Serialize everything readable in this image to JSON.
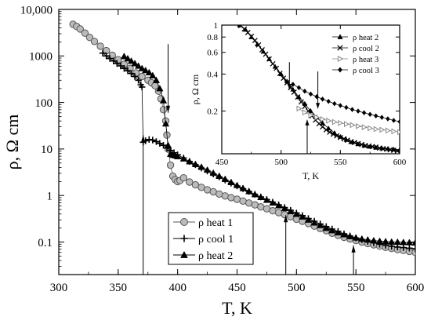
{
  "chart_data": [
    {
      "type": "scatter",
      "title": "",
      "xlabel": "T, K",
      "ylabel": "ρ, Ω cm",
      "xlim": [
        300,
        600
      ],
      "ylim": [
        0.02,
        10000
      ],
      "yscale": "log",
      "grid": false,
      "legend_position": "bottom-left",
      "x_ticks": [
        300,
        350,
        400,
        450,
        500,
        550,
        600
      ],
      "x_tick_labels": [
        "300",
        "350",
        "400",
        "450",
        "500",
        "550",
        "600"
      ],
      "y_ticks": [
        0.1,
        1,
        10,
        100,
        1000,
        10000
      ],
      "y_tick_labels": [
        "0.1",
        "1",
        "10",
        "100",
        "1000",
        "10,000"
      ],
      "arrows": [
        {
          "x": 371,
          "y_from": 0.009,
          "y_to": 20,
          "direction": "up"
        },
        {
          "x": 392,
          "y_from": 1800,
          "y_to": 60,
          "direction": "down"
        },
        {
          "x": 491,
          "y_from": 0.009,
          "y_to": 0.38,
          "direction": "up"
        },
        {
          "x": 548,
          "y_from": 0.009,
          "y_to": 0.085,
          "direction": "up"
        }
      ],
      "series": [
        {
          "name": "ρ heat 1",
          "marker": "circle-open",
          "color": "#555555",
          "fill": "#bbbbbb",
          "x": [
            312,
            315,
            318,
            322,
            326,
            330,
            335,
            340,
            345,
            350,
            355,
            360,
            365,
            370,
            375,
            378,
            381,
            384,
            386,
            388,
            390,
            391,
            392,
            394,
            396,
            398,
            400,
            402,
            405,
            410,
            415,
            420,
            425,
            430,
            435,
            440,
            445,
            450,
            455,
            460,
            465,
            470,
            475,
            480,
            485,
            490,
            495,
            500,
            505,
            510,
            515,
            520,
            525,
            530,
            535,
            540,
            545,
            550,
            555,
            560,
            565,
            570,
            575,
            580,
            585,
            590,
            595,
            600
          ],
          "y": [
            4800,
            4300,
            3800,
            3100,
            2500,
            2050,
            1620,
            1300,
            1030,
            830,
            660,
            540,
            430,
            360,
            300,
            265,
            230,
            175,
            120,
            70,
            40,
            20,
            10,
            4.5,
            2.6,
            2.2,
            2.0,
            2.1,
            2.4,
            1.95,
            1.7,
            1.5,
            1.33,
            1.2,
            1.08,
            0.98,
            0.9,
            0.83,
            0.76,
            0.69,
            0.63,
            0.57,
            0.52,
            0.47,
            0.43,
            0.39,
            0.35,
            0.31,
            0.28,
            0.25,
            0.22,
            0.195,
            0.175,
            0.155,
            0.14,
            0.127,
            0.117,
            0.108,
            0.1,
            0.093,
            0.087,
            0.082,
            0.077,
            0.073,
            0.069,
            0.066,
            0.063,
            0.06
          ]
        },
        {
          "name": "ρ cool 1",
          "marker": "plus",
          "color": "#000000",
          "x": [
            337,
            340,
            343,
            346,
            349,
            352,
            355,
            358,
            361,
            364,
            367,
            369,
            370,
            371,
            373,
            376,
            379,
            382,
            385,
            388,
            391,
            394,
            397,
            400,
            405,
            410,
            415,
            420,
            425,
            430,
            435,
            440,
            445,
            450,
            455,
            460,
            465,
            470,
            475,
            480,
            485,
            490,
            495,
            500,
            505,
            510,
            515,
            520,
            525,
            530,
            535,
            540,
            545,
            550,
            555,
            560,
            565,
            570,
            575,
            580,
            585,
            590,
            595,
            600
          ],
          "y": [
            1150,
            1000,
            880,
            780,
            690,
            610,
            540,
            480,
            420,
            360,
            300,
            240,
            215,
            14,
            15,
            16,
            15.5,
            14.5,
            13.2,
            12,
            10.5,
            9.3,
            8.3,
            7.5,
            6.4,
            5.4,
            4.6,
            3.9,
            3.35,
            2.9,
            2.5,
            2.15,
            1.85,
            1.6,
            1.4,
            1.22,
            1.06,
            0.93,
            0.82,
            0.72,
            0.63,
            0.55,
            0.48,
            0.42,
            0.37,
            0.32,
            0.28,
            0.245,
            0.215,
            0.19,
            0.17,
            0.15,
            0.135,
            0.122,
            0.112,
            0.103,
            0.096,
            0.09,
            0.085,
            0.081,
            0.078,
            0.076,
            0.074,
            0.072
          ]
        },
        {
          "name": "ρ heat 2",
          "marker": "triangle-filled",
          "color": "#000000",
          "x": [
            355,
            358,
            361,
            364,
            367,
            370,
            373,
            376,
            379,
            382,
            385,
            388,
            390,
            392,
            394,
            396,
            398,
            400,
            405,
            410,
            415,
            420,
            425,
            430,
            435,
            440,
            445,
            450,
            455,
            460,
            465,
            470,
            475,
            480,
            485,
            490,
            495,
            500,
            505,
            510,
            515,
            520,
            525,
            530,
            535,
            540,
            545,
            550,
            555,
            560,
            565,
            570,
            575,
            580,
            585,
            590,
            595,
            600
          ],
          "y": [
            980,
            880,
            780,
            690,
            610,
            540,
            490,
            440,
            380,
            300,
            200,
            110,
            35,
            12,
            7.8,
            7.4,
            7.2,
            6.9,
            6.2,
            5.4,
            4.7,
            4.1,
            3.55,
            3.05,
            2.62,
            2.25,
            1.93,
            1.66,
            1.43,
            1.23,
            1.06,
            0.92,
            0.8,
            0.7,
            0.61,
            0.53,
            0.46,
            0.4,
            0.35,
            0.3,
            0.26,
            0.23,
            0.2,
            0.178,
            0.16,
            0.145,
            0.133,
            0.124,
            0.117,
            0.112,
            0.108,
            0.105,
            0.103,
            0.101,
            0.1,
            0.099,
            0.098,
            0.097
          ]
        }
      ]
    },
    {
      "type": "scatter",
      "title": "",
      "xlabel": "T, K",
      "ylabel": "ρ, Ω cm",
      "xlim": [
        450,
        600
      ],
      "ylim": [
        0.09,
        1
      ],
      "yscale": "log",
      "grid": false,
      "legend_position": "right",
      "x_ticks": [
        450,
        500,
        550,
        600
      ],
      "x_tick_labels": [
        "450",
        "500",
        "550",
        "600"
      ],
      "y_ticks": [
        0.2,
        0.4,
        0.6,
        0.8,
        1
      ],
      "y_tick_labels": [
        "0.2",
        "0.4",
        "0.6",
        "0.8",
        "1"
      ],
      "arrows": [
        {
          "x": 507,
          "y_from": 0.5,
          "y_to": 0.3,
          "direction": "down"
        },
        {
          "x": 522,
          "y_from": 0.09,
          "y_to": 0.17,
          "direction": "up"
        },
        {
          "x": 531,
          "y_from": 0.42,
          "y_to": 0.21,
          "direction": "down"
        }
      ],
      "series": [
        {
          "name": "ρ heat 2",
          "marker": "triangle-filled",
          "color": "#000000",
          "x": [
            465,
            470,
            475,
            480,
            485,
            490,
            495,
            500,
            505,
            510,
            515,
            520,
            525,
            530,
            535,
            540,
            545,
            550,
            555,
            560,
            565,
            570,
            575,
            580,
            585,
            590,
            595,
            600
          ],
          "y": [
            1.0,
            0.92,
            0.8,
            0.7,
            0.61,
            0.53,
            0.46,
            0.4,
            0.35,
            0.3,
            0.26,
            0.23,
            0.2,
            0.178,
            0.16,
            0.145,
            0.133,
            0.124,
            0.117,
            0.112,
            0.108,
            0.105,
            0.103,
            0.101,
            0.1,
            0.099,
            0.098,
            0.097
          ]
        },
        {
          "name": "ρ cool 2",
          "marker": "x",
          "color": "#000000",
          "x": [
            466,
            469,
            472,
            475,
            478,
            481,
            484,
            487,
            490,
            493,
            496,
            499,
            502,
            505,
            508,
            511,
            514,
            517,
            520,
            523,
            526,
            529,
            532,
            535,
            538,
            541,
            544,
            547,
            550,
            553,
            556,
            559,
            562,
            565,
            568,
            571,
            574,
            577,
            580,
            583,
            586,
            589,
            592,
            595,
            598
          ],
          "y": [
            0.99,
            0.93,
            0.87,
            0.81,
            0.75,
            0.69,
            0.63,
            0.58,
            0.53,
            0.485,
            0.445,
            0.405,
            0.37,
            0.34,
            0.31,
            0.285,
            0.26,
            0.238,
            0.218,
            0.2,
            0.183,
            0.169,
            0.158,
            0.149,
            0.141,
            0.135,
            0.13,
            0.126,
            0.122,
            0.119,
            0.116,
            0.113,
            0.111,
            0.109,
            0.107,
            0.105,
            0.104,
            0.103,
            0.102,
            0.1,
            0.099,
            0.098,
            0.097,
            0.096,
            0.095
          ]
        },
        {
          "name": "ρ heat 3",
          "marker": "triangle-right-open",
          "color": "#888888",
          "x": [
            515,
            520,
            525,
            530,
            535,
            540,
            545,
            550,
            555,
            560,
            565,
            570,
            575,
            580,
            585,
            590,
            595,
            600
          ],
          "y": [
            0.21,
            0.195,
            0.185,
            0.178,
            0.172,
            0.167,
            0.163,
            0.16,
            0.157,
            0.154,
            0.151,
            0.148,
            0.145,
            0.143,
            0.141,
            0.139,
            0.137,
            0.135
          ]
        },
        {
          "name": "ρ cool 3",
          "marker": "diamond-filled",
          "color": "#000000",
          "x": [
            510,
            515,
            520,
            525,
            530,
            535,
            540,
            545,
            550,
            555,
            560,
            565,
            570,
            575,
            580,
            585,
            590,
            595,
            600
          ],
          "y": [
            0.33,
            0.31,
            0.29,
            0.275,
            0.262,
            0.25,
            0.24,
            0.23,
            0.222,
            0.214,
            0.206,
            0.2,
            0.194,
            0.188,
            0.183,
            0.178,
            0.173,
            0.168,
            0.164
          ]
        }
      ]
    }
  ]
}
